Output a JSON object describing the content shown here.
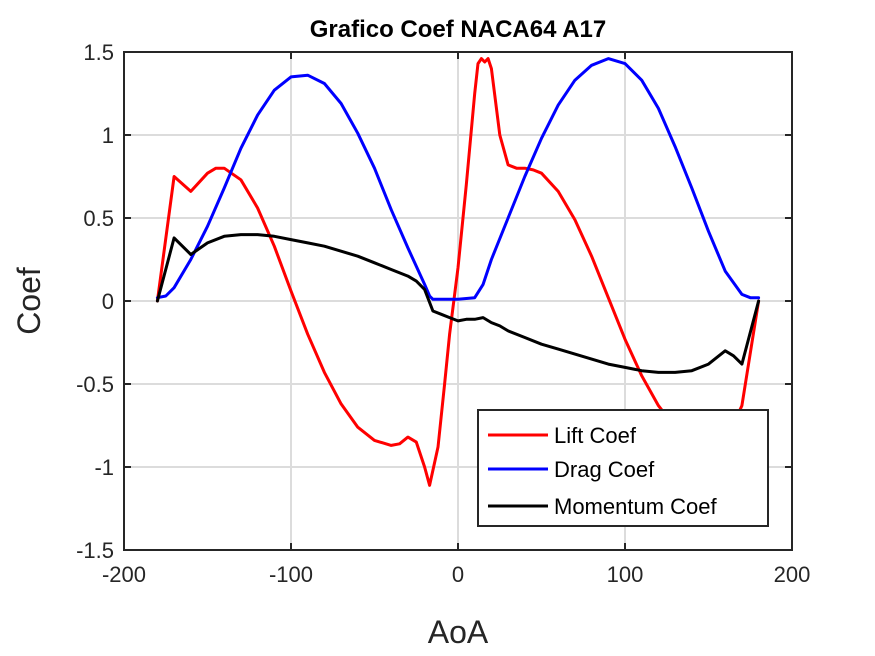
{
  "chart_data": {
    "type": "line",
    "title": "Grafico Coef NACA64 A17",
    "xlabel": "AoA",
    "ylabel": "Coef",
    "xlim": [
      -200,
      200
    ],
    "ylim": [
      -1.5,
      1.5
    ],
    "xticks": [
      -200,
      -100,
      0,
      100,
      200
    ],
    "yticks": [
      -1.5,
      -1,
      -0.5,
      0,
      0.5,
      1,
      1.5
    ],
    "xtick_labels": [
      "-200",
      "-100",
      "0",
      "100",
      "200"
    ],
    "ytick_labels": [
      "-1.5",
      "-1",
      "-0.5",
      "0",
      "0.5",
      "1",
      "1.5"
    ],
    "grid": true,
    "legend": "bottom-right",
    "series": [
      {
        "name": "Lift Coef",
        "color": "#ff0000",
        "x": [
          -180,
          -170,
          -160,
          -150,
          -145,
          -140,
          -130,
          -120,
          -110,
          -100,
          -90,
          -80,
          -70,
          -60,
          -50,
          -40,
          -35,
          -30,
          -25,
          -20,
          -17,
          -15,
          -12,
          -8,
          -5,
          0,
          5,
          10,
          12,
          14,
          16,
          18,
          20,
          25,
          30,
          35,
          40,
          45,
          50,
          60,
          70,
          80,
          90,
          100,
          110,
          120,
          130,
          140,
          150,
          160,
          170,
          180
        ],
        "y": [
          0,
          0.75,
          0.66,
          0.77,
          0.8,
          0.8,
          0.73,
          0.56,
          0.33,
          0.06,
          -0.2,
          -0.43,
          -0.62,
          -0.76,
          -0.84,
          -0.87,
          -0.86,
          -0.82,
          -0.85,
          -1.0,
          -1.11,
          -1.02,
          -0.88,
          -0.5,
          -0.2,
          0.2,
          0.7,
          1.25,
          1.43,
          1.46,
          1.44,
          1.46,
          1.4,
          1.0,
          0.82,
          0.8,
          0.8,
          0.79,
          0.77,
          0.66,
          0.49,
          0.27,
          0.02,
          -0.23,
          -0.45,
          -0.63,
          -0.76,
          -0.85,
          -0.88,
          -0.85,
          -0.63,
          0
        ]
      },
      {
        "name": "Drag Coef",
        "color": "#0000ff",
        "x": [
          -180,
          -175,
          -170,
          -160,
          -150,
          -140,
          -130,
          -120,
          -110,
          -100,
          -90,
          -80,
          -70,
          -60,
          -50,
          -40,
          -30,
          -20,
          -17,
          -15,
          -10,
          0,
          10,
          15,
          20,
          30,
          40,
          50,
          60,
          70,
          80,
          90,
          100,
          110,
          120,
          130,
          140,
          150,
          160,
          170,
          175,
          180
        ],
        "y": [
          0.02,
          0.03,
          0.08,
          0.25,
          0.45,
          0.68,
          0.92,
          1.12,
          1.27,
          1.35,
          1.36,
          1.31,
          1.19,
          1.01,
          0.8,
          0.55,
          0.32,
          0.1,
          0.03,
          0.01,
          0.01,
          0.01,
          0.02,
          0.1,
          0.25,
          0.5,
          0.75,
          0.98,
          1.18,
          1.33,
          1.42,
          1.46,
          1.43,
          1.33,
          1.16,
          0.93,
          0.68,
          0.42,
          0.18,
          0.04,
          0.02,
          0.02
        ]
      },
      {
        "name": "Momentum Coef",
        "color": "#000000",
        "x": [
          -180,
          -170,
          -160,
          -150,
          -140,
          -130,
          -120,
          -110,
          -100,
          -90,
          -80,
          -70,
          -60,
          -50,
          -40,
          -30,
          -25,
          -20,
          -15,
          -10,
          -5,
          0,
          5,
          10,
          15,
          20,
          25,
          30,
          40,
          50,
          60,
          70,
          80,
          90,
          100,
          110,
          120,
          130,
          140,
          150,
          160,
          165,
          170,
          180
        ],
        "y": [
          0,
          0.38,
          0.28,
          0.35,
          0.39,
          0.4,
          0.4,
          0.39,
          0.37,
          0.35,
          0.33,
          0.3,
          0.27,
          0.23,
          0.19,
          0.15,
          0.12,
          0.07,
          -0.06,
          -0.08,
          -0.1,
          -0.12,
          -0.11,
          -0.11,
          -0.1,
          -0.13,
          -0.15,
          -0.18,
          -0.22,
          -0.26,
          -0.29,
          -0.32,
          -0.35,
          -0.38,
          -0.4,
          -0.42,
          -0.43,
          -0.43,
          -0.42,
          -0.38,
          -0.3,
          -0.33,
          -0.38,
          0
        ]
      }
    ]
  }
}
